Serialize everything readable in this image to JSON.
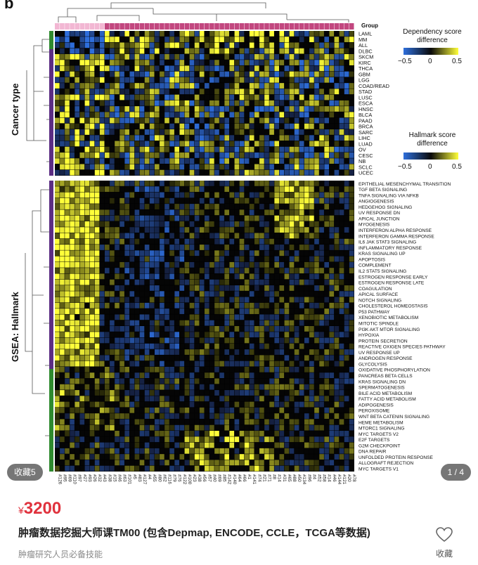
{
  "figure": {
    "panel_letter": "b",
    "group_label": "Group",
    "section_cancer_type": "Cancer type",
    "section_hallmark": "GSEA: Hallmark",
    "legend_dependency": {
      "title_line1": "Dependency score",
      "title_line2": "difference",
      "min": "−0.5",
      "mid": "0",
      "max": "0.5"
    },
    "legend_hallmark": {
      "title_line1": "Hallmark score",
      "title_line2": "difference",
      "min": "−0.5",
      "mid": "0",
      "max": "0.5"
    },
    "cancer_rows": [
      "LAML",
      "MM",
      "ALL",
      "DLBC",
      "SKCM",
      "KIRC",
      "THCA",
      "GBM",
      "LGG",
      "COAD/READ",
      "STAD",
      "LUSC",
      "ESCA",
      "HNSC",
      "BLCA",
      "PAAD",
      "BRCA",
      "SARC",
      "LIHC",
      "LUAD",
      "OV",
      "CESC",
      "NB",
      "SCLC",
      "UCEC"
    ],
    "hallmark_rows": [
      "EPITHELIAL MESENCHYMAL TRANSITION",
      "TGF BETA SIGNALING",
      "TNFA SIGNALING VIA NFKB",
      "ANGIOGENESIS",
      "HEDGEHOG SIGNALING",
      "UV RESPONSE DN",
      "APICAL JUNCTION",
      "MYOGENESIS",
      "INTERFERON ALPHA RESPONSE",
      "INTERFERON GAMMA RESPONSE",
      "IL6 JAK STAT3 SIGNALING",
      "INFLAMMATORY RESPONSE",
      "KRAS SIGNALING UP",
      "APOPTOSIS",
      "COMPLEMENT",
      "IL2 STAT5 SIGNALING",
      "ESTROGEN RESPONSE EARLY",
      "ESTROGEN RESPONSE LATE",
      "COAGULATION",
      "APICAL SURFACE",
      "NOTCH SIGNALING",
      "CHOLESTEROL HOMEOSTASIS",
      "P53 PATHWAY",
      "XENOBIOTIC METABOLISM",
      "MITOTIC SPINDLE",
      "PI3K AKT MTOR SIGNALING",
      "HYPOXIA",
      "PROTEIN SECRETION",
      "REACTIVE OXIGEN SPECIES PATHWAY",
      "UV RESPONSE UP",
      "ANDROGEN RESPONSE",
      "GLYCOLYSIS",
      "OXIDATIVE PHOSPHORYLATION",
      "PANCREAS BETA CELLS",
      "KRAS SIGNALING DN",
      "SPERMATOGENESIS",
      "BILE ACID METABOLISM",
      "FATTY ACID METABOLISM",
      "ADIPOGENESIS",
      "PEROXISOME",
      "WNT BETA CATENIN SIGNALING",
      "HEME METABOLISM",
      "MTORC1 SIGNALING",
      "MYC TARGETS V2",
      "E2F TARGETS",
      "G2M CHECKPOINT",
      "DNA REPAIR",
      "UNFOLDED PROTEIN RESPONSE",
      "ALLOGRAFT REJECTION",
      "MYC TARGETS V1"
    ],
    "column_labels": [
      "#126",
      "#95",
      "#69",
      "#110",
      "#97",
      "#27",
      "#93",
      "#26",
      "#32",
      "#43",
      "#38",
      "#15",
      "#46",
      "#63",
      "#101",
      "#5",
      "#83",
      "#127",
      "#4",
      "#55",
      "#80",
      "#62",
      "#116",
      "#79",
      "#76",
      "#122",
      "#100",
      "#23",
      "#38",
      "#56",
      "#57",
      "#40",
      "#69",
      "#85",
      "#142",
      "#140",
      "#64",
      "#66",
      "#1",
      "#141",
      "#74",
      "#21",
      "#71",
      "#8",
      "#14",
      "#31",
      "#65",
      "#88",
      "#50",
      "#134",
      "#96",
      "#4",
      "#52",
      "#58",
      "#14",
      "#46",
      "#144",
      "#121",
      "#20",
      "#78"
    ],
    "colors": {
      "pink": "#f2b7d3",
      "magenta": "#c2477f",
      "green": "#2f8a2f",
      "purple": "#5b2d83",
      "low": "#2e6fdc",
      "high": "#ffff3a"
    }
  },
  "image_counter": "1 / 4",
  "collect_count_badge": "收藏5",
  "product": {
    "currency": "¥",
    "price": "3200",
    "title": "肿瘤数据挖掘大师课TM00 (包含Depmap, ENCODE, CCLE，TCGA等数据)",
    "subtitle": "肿瘤研究人员必备技能"
  },
  "favorite": {
    "icon": "heart-outline-icon",
    "label": "收藏"
  }
}
